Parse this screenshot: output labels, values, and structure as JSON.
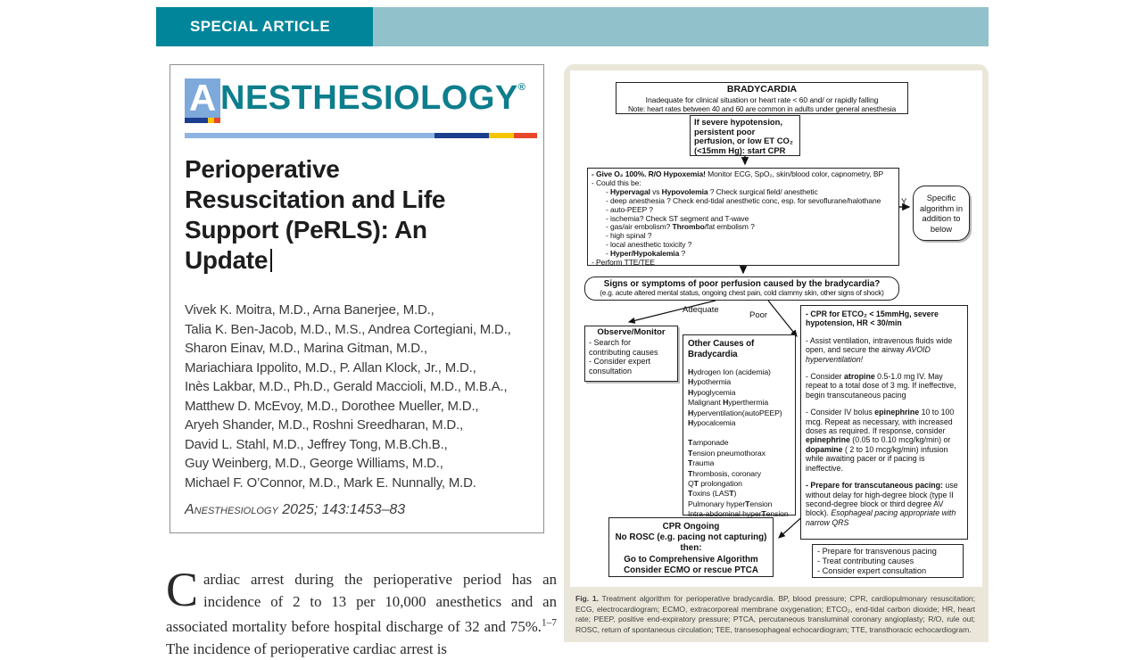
{
  "banner": {
    "label": "SPECIAL ARTICLE"
  },
  "masthead": {
    "a": "A",
    "rest": "NESTHESIOLOGY",
    "reg": "®"
  },
  "article": {
    "title_lines": [
      "Perioperative",
      "Resuscitation and Life",
      "Support (PeRLS): An",
      "Update"
    ],
    "authors": [
      "Vivek K. Moitra, M.D., Arna Banerjee, M.D.,",
      "Talia K. Ben-Jacob, M.D., M.S., Andrea Cortegiani, M.D.,",
      "Sharon Einav, M.D., Marina Gitman, M.D.,",
      "Mariachiara Ippolito, M.D., P. Allan Klock, Jr., M.D.,",
      "Inès Lakbar, M.D., Ph.D., Gerald Maccioli, M.D., M.B.A.,",
      "Matthew D. McEvoy, M.D., Dorothee Mueller, M.D.,",
      "Aryeh Shander, M.D., Roshni Sreedharan, M.D.,",
      "David L. Stahl, M.D., Jeffrey Tong, M.B.Ch.B.,",
      "Guy Weinberg, M.D., George Williams, M.D.,",
      "Michael F. O’Connor, M.D., Mark E. Nunnally, M.D."
    ],
    "citation": "Anesthesiology 2025; 143:1453–83"
  },
  "intro": {
    "dropcap": "C",
    "rich": [
      {
        "t": "ardiac arrest during the perioperative period has an incidence of 2 to 13 per 10,000 anesthetics and an associated mortality before hospital discharge of 32 and 75%.",
        "s": ""
      },
      {
        "t": "1–7",
        "s": "sup"
      },
      {
        "t": " The incidence of perioperative cardiac arrest is",
        "s": ""
      }
    ]
  },
  "flow": {
    "bradycardia": {
      "title": "BRADYCARDIA",
      "l2": "Inadequate for clinical situation or heart rate < 60 and/ or rapidly falling",
      "l3": "Note: heart rates between 40 and 60 are common in adults under general anesthesia"
    },
    "start_cpr": "If severe hypotension, persistent poor perfusion, or low ET CO₂ (<15mm Hg): start CPR",
    "assess": {
      "l1": [
        {
          "t": "- Give O₂ 100%. R/O Hypoxemia!",
          "s": "b"
        },
        {
          "t": " Monitor ECG, SpO₂, skin/blood color, capnometry, BP",
          "s": ""
        }
      ],
      "l2": "- Could this be:",
      "l3": [
        {
          "t": "- ",
          "s": ""
        },
        {
          "t": "Hypervagal",
          "s": "b"
        },
        {
          "t": " vs ",
          "s": ""
        },
        {
          "t": "Hypovolemia",
          "s": "b"
        },
        {
          "t": " ? Check surgical field/ anesthetic",
          "s": ""
        }
      ],
      "l4": "- deep anesthesia ? Check end-tidal anesthetic conc, esp. for sevoflurane/halothane",
      "l5": "- auto-PEEP ?",
      "l6": "- ischemia? Check ST segment and T-wave",
      "l7": [
        {
          "t": "- gas/air embolism? ",
          "s": ""
        },
        {
          "t": "Thrombo",
          "s": "b"
        },
        {
          "t": "/fat embolism ?",
          "s": ""
        }
      ],
      "l8": "- high spinal ?",
      "l9": "- local anesthetic toxicity ?",
      "l10": [
        {
          "t": "- ",
          "s": ""
        },
        {
          "t": "Hyper/Hypokalemia",
          "s": "b"
        },
        {
          "t": " ?",
          "s": ""
        }
      ],
      "l11": "- Perform TTE/TEE"
    },
    "y_label": "Y",
    "specific": "Specific algorithm in addition to below",
    "signs": {
      "title": "Signs or symptoms of poor perfusion caused by the bradycardia?",
      "sub": "(e.g. acute altered mental status, ongoing chest pain, cold clammy skin, other signs of shock)"
    },
    "adequate": "Adequate",
    "poor": "Poor",
    "observe": {
      "title": "Observe/Monitor",
      "items": [
        "- Search for contributing causes",
        "- Consider expert consultation"
      ]
    },
    "causes": {
      "title": "Other Causes of Bradycardia",
      "group1": [
        [
          {
            "t": "H",
            "s": "b"
          },
          {
            "t": "ydrogen Ion (acidemia)",
            "s": ""
          }
        ],
        [
          {
            "t": "H",
            "s": "b"
          },
          {
            "t": "ypothermia",
            "s": ""
          }
        ],
        [
          {
            "t": "H",
            "s": "b"
          },
          {
            "t": "ypoglycemia",
            "s": ""
          }
        ],
        [
          {
            "t": "Malignant ",
            "s": ""
          },
          {
            "t": "H",
            "s": "b"
          },
          {
            "t": "yperthermia",
            "s": ""
          }
        ],
        [
          {
            "t": "H",
            "s": "b"
          },
          {
            "t": "yperventilation(autoPEEP)",
            "s": ""
          }
        ],
        [
          {
            "t": "H",
            "s": "b"
          },
          {
            "t": "ypocalcemia",
            "s": ""
          }
        ]
      ],
      "group2": [
        [
          {
            "t": "T",
            "s": "b"
          },
          {
            "t": "amponade",
            "s": ""
          }
        ],
        [
          {
            "t": "T",
            "s": "b"
          },
          {
            "t": "ension pneumothorax",
            "s": ""
          }
        ],
        [
          {
            "t": "T",
            "s": "b"
          },
          {
            "t": "rauma",
            "s": ""
          }
        ],
        [
          {
            "t": "T",
            "s": "b"
          },
          {
            "t": "hrombosis, coronary",
            "s": ""
          }
        ],
        [
          {
            "t": "Q",
            "s": ""
          },
          {
            "t": "T",
            "s": "b"
          },
          {
            "t": " prolongation",
            "s": ""
          }
        ],
        [
          {
            "t": "T",
            "s": "b"
          },
          {
            "t": "oxins (LAS",
            "s": ""
          },
          {
            "t": "T",
            "s": "b"
          },
          {
            "t": ")",
            "s": ""
          }
        ],
        [
          {
            "t": "Pulmonary hyper",
            "s": ""
          },
          {
            "t": "T",
            "s": "b"
          },
          {
            "t": "ension",
            "s": ""
          }
        ],
        [
          {
            "t": "Intra-abdominal hyper",
            "s": ""
          },
          {
            "t": "T",
            "s": "b"
          },
          {
            "t": "ension",
            "s": ""
          }
        ]
      ]
    },
    "cpr": {
      "p1": [
        {
          "t": "- CPR for ETCO₂ < 15mmHg, severe hypotension, HR < 30/min",
          "s": "b"
        }
      ],
      "p2": [
        {
          "t": "- Assist ventilation, intravenous fluids wide open, and secure the airway ",
          "s": ""
        },
        {
          "t": "AVOID hyperventilation!",
          "s": "i"
        }
      ],
      "p3": [
        {
          "t": "-  Consider ",
          "s": ""
        },
        {
          "t": "atropine",
          "s": "b"
        },
        {
          "t": " 0.5-1.0  mg IV. May repeat to a total dose of 3 mg.  If ineffective, begin transcutaneous pacing",
          "s": ""
        }
      ],
      "p4": [
        {
          "t": "- Consider IV bolus ",
          "s": ""
        },
        {
          "t": "epinephrine",
          "s": "b"
        },
        {
          "t": " 10 to 100 mcg. Repeat as necessary, with increased doses as required. If response, consider ",
          "s": ""
        },
        {
          "t": "epinephrine",
          "s": "b"
        },
        {
          "t": " (0.05 to 0.10 mcg/kg/min) or ",
          "s": ""
        },
        {
          "t": "dopamine",
          "s": "b"
        },
        {
          "t": " ( 2 to 10 mcg/kg/min) infusion while awaiting pacer or if pacing is ineffective.",
          "s": ""
        }
      ],
      "p5": [
        {
          "t": "- Prepare for transcutaneous pacing:",
          "s": "b"
        },
        {
          "t": " use without delay for high-degree block (type II second-degree block or third degree AV block). ",
          "s": ""
        },
        {
          "t": "Esophageal pacing appropriate with narrow QRS",
          "s": "i"
        }
      ]
    },
    "ongoing": {
      "lines": [
        "CPR Ongoing",
        "No ROSC (e.g. pacing not capturing)",
        "then:",
        "Go to Comprehensive Algorithm",
        "Consider ECMO or rescue PTCA"
      ]
    },
    "transvenous": {
      "items": [
        "- Prepare for transvenous pacing",
        "- Treat contributing causes",
        "- Consider expert consultation"
      ]
    }
  },
  "caption": {
    "rich": [
      {
        "t": "Fig. 1.",
        "s": "b"
      },
      {
        "t": "  Treatment algorithm for perioperative bradycardia. BP, blood pressure; CPR, cardiopulmonary resuscitation; ECG, electrocardiogram; ECMO, extracorporeal membrane oxygenation; ETCO₂, end-tidal carbon dioxide; HR, heart rate; PEEP, positive end-expiratory pressure; PTCA, percutaneous transluminal coronary angioplasty; R/O, rule out; ROSC, return of spontaneous circulation; TEE, transesophageal echocardiogram; TTE, transthoracic echocardiogram.",
        "s": ""
      }
    ]
  },
  "colors": {
    "banner_dark_teal": "#00859a",
    "banner_light_teal": "#91c1ca",
    "logo_teal": "#0d7e8c",
    "logo_blue": "#7ea9db",
    "bar_light_blue": "#8db4e2",
    "bar_navy": "#1b3e8f",
    "bar_yellow": "#f7c600",
    "bar_red": "#e8472b",
    "figure_beige": "#eae6d9"
  }
}
